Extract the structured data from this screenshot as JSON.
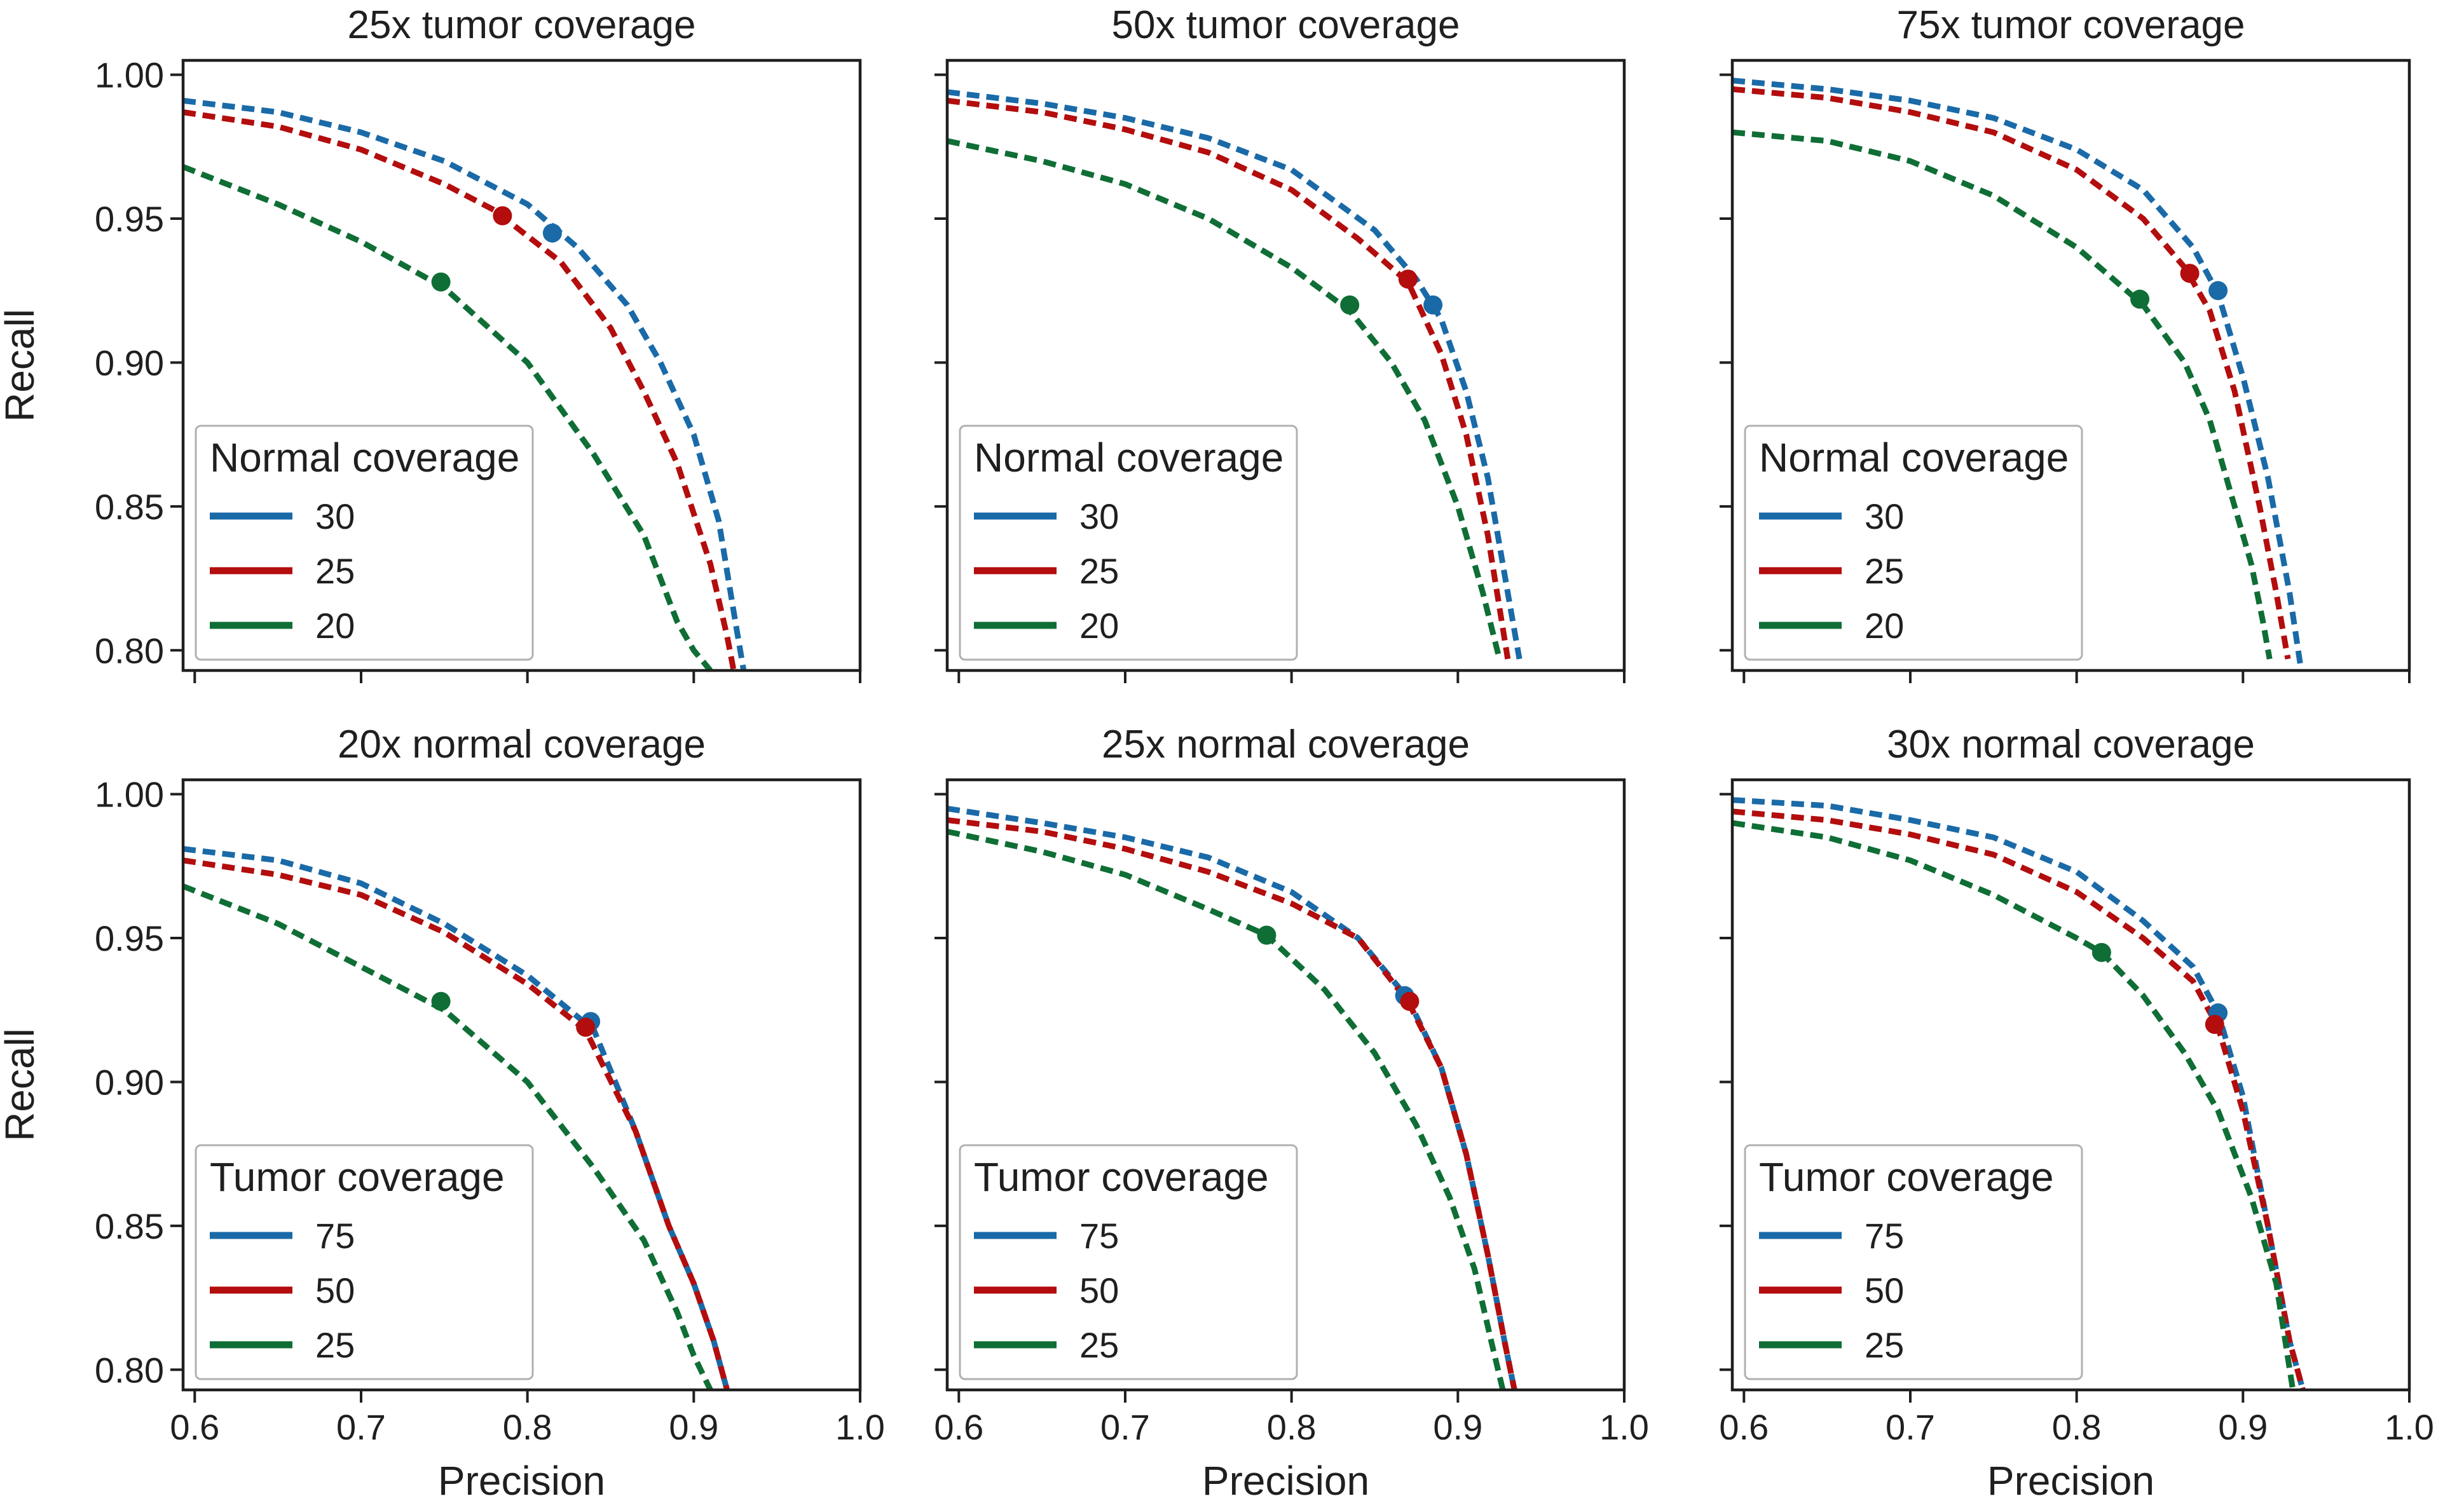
{
  "colors": {
    "blue": "#1a6aa8",
    "red": "#b30d0d",
    "green": "#0f6e35"
  },
  "chart_data": [
    {
      "type": "line",
      "title": "25x tumor coverage",
      "xlabel": "",
      "ylabel": "Recall",
      "xlim": [
        0.593,
        1.0
      ],
      "ylim": [
        0.793,
        1.005
      ],
      "xticks": [
        "0.6",
        "0.7",
        "0.8",
        "0.9",
        "1.0"
      ],
      "yticks": [
        "0.80",
        "0.85",
        "0.90",
        "0.95",
        "1.00"
      ],
      "show_xtick_labels": false,
      "show_ytick_labels": true,
      "legend": {
        "title": "Normal coverage",
        "placement": "lower-left",
        "entries": [
          "30",
          "25",
          "20"
        ]
      },
      "series": [
        {
          "name": "30",
          "color": "blue",
          "x": [
            0.593,
            0.65,
            0.7,
            0.75,
            0.8,
            0.83,
            0.86,
            0.88,
            0.9,
            0.915,
            0.925,
            0.93
          ],
          "y": [
            0.991,
            0.987,
            0.98,
            0.97,
            0.955,
            0.94,
            0.92,
            0.9,
            0.875,
            0.845,
            0.81,
            0.793
          ],
          "marker": [
            0.815,
            0.945
          ]
        },
        {
          "name": "25",
          "color": "red",
          "x": [
            0.593,
            0.65,
            0.7,
            0.75,
            0.78,
            0.82,
            0.85,
            0.87,
            0.89,
            0.91,
            0.92,
            0.924
          ],
          "y": [
            0.987,
            0.982,
            0.974,
            0.962,
            0.953,
            0.935,
            0.912,
            0.89,
            0.865,
            0.83,
            0.805,
            0.793
          ],
          "marker": [
            0.785,
            0.951
          ]
        },
        {
          "name": "20",
          "color": "green",
          "x": [
            0.593,
            0.65,
            0.7,
            0.75,
            0.8,
            0.84,
            0.87,
            0.89,
            0.9,
            0.91
          ],
          "y": [
            0.968,
            0.955,
            0.942,
            0.926,
            0.9,
            0.868,
            0.84,
            0.81,
            0.8,
            0.793
          ],
          "marker": [
            0.748,
            0.928
          ]
        }
      ]
    },
    {
      "type": "line",
      "title": "50x tumor coverage",
      "xlabel": "",
      "ylabel": "",
      "xlim": [
        0.593,
        1.0
      ],
      "ylim": [
        0.793,
        1.005
      ],
      "xticks": [
        "0.6",
        "0.7",
        "0.8",
        "0.9",
        "1.0"
      ],
      "yticks": [
        "0.80",
        "0.85",
        "0.90",
        "0.95",
        "1.00"
      ],
      "show_xtick_labels": false,
      "show_ytick_labels": false,
      "legend": {
        "title": "Normal coverage",
        "placement": "lower-left",
        "entries": [
          "30",
          "25",
          "20"
        ]
      },
      "series": [
        {
          "name": "30",
          "color": "blue",
          "x": [
            0.593,
            0.65,
            0.7,
            0.75,
            0.8,
            0.85,
            0.875,
            0.89,
            0.905,
            0.918,
            0.93,
            0.937
          ],
          "y": [
            0.994,
            0.99,
            0.985,
            0.978,
            0.967,
            0.946,
            0.929,
            0.915,
            0.89,
            0.86,
            0.82,
            0.797
          ],
          "marker": [
            0.885,
            0.92
          ]
        },
        {
          "name": "25",
          "color": "red",
          "x": [
            0.593,
            0.65,
            0.7,
            0.75,
            0.8,
            0.84,
            0.87,
            0.89,
            0.905,
            0.918,
            0.93
          ],
          "y": [
            0.991,
            0.987,
            0.981,
            0.973,
            0.96,
            0.943,
            0.928,
            0.903,
            0.875,
            0.84,
            0.797
          ],
          "marker": [
            0.87,
            0.929
          ]
        },
        {
          "name": "20",
          "color": "green",
          "x": [
            0.593,
            0.65,
            0.7,
            0.75,
            0.8,
            0.835,
            0.86,
            0.88,
            0.9,
            0.915,
            0.925
          ],
          "y": [
            0.977,
            0.97,
            0.962,
            0.95,
            0.933,
            0.918,
            0.9,
            0.88,
            0.85,
            0.82,
            0.797
          ],
          "marker": [
            0.835,
            0.92
          ]
        }
      ]
    },
    {
      "type": "line",
      "title": "75x tumor coverage",
      "xlabel": "",
      "ylabel": "",
      "xlim": [
        0.593,
        1.0
      ],
      "ylim": [
        0.793,
        1.005
      ],
      "xticks": [
        "0.6",
        "0.7",
        "0.8",
        "0.9",
        "1.0"
      ],
      "yticks": [
        "0.80",
        "0.85",
        "0.90",
        "0.95",
        "1.00"
      ],
      "show_xtick_labels": false,
      "show_ytick_labels": false,
      "legend": {
        "title": "Normal coverage",
        "placement": "lower-left",
        "entries": [
          "30",
          "25",
          "20"
        ]
      },
      "series": [
        {
          "name": "30",
          "color": "blue",
          "x": [
            0.593,
            0.65,
            0.7,
            0.75,
            0.8,
            0.84,
            0.87,
            0.885,
            0.9,
            0.915,
            0.928,
            0.935
          ],
          "y": [
            0.998,
            0.995,
            0.991,
            0.985,
            0.974,
            0.96,
            0.94,
            0.924,
            0.895,
            0.86,
            0.82,
            0.793
          ],
          "marker": [
            0.885,
            0.925
          ]
        },
        {
          "name": "25",
          "color": "red",
          "x": [
            0.593,
            0.65,
            0.7,
            0.75,
            0.8,
            0.84,
            0.865,
            0.88,
            0.895,
            0.91,
            0.92,
            0.927
          ],
          "y": [
            0.995,
            0.992,
            0.987,
            0.98,
            0.967,
            0.95,
            0.933,
            0.918,
            0.89,
            0.85,
            0.82,
            0.797
          ],
          "marker": [
            0.868,
            0.931
          ]
        },
        {
          "name": "20",
          "color": "green",
          "x": [
            0.593,
            0.65,
            0.7,
            0.75,
            0.8,
            0.84,
            0.865,
            0.88,
            0.895,
            0.905,
            0.912,
            0.916
          ],
          "y": [
            0.98,
            0.977,
            0.97,
            0.958,
            0.94,
            0.92,
            0.9,
            0.88,
            0.85,
            0.83,
            0.81,
            0.797
          ],
          "marker": [
            0.838,
            0.922
          ]
        }
      ]
    },
    {
      "type": "line",
      "title": "20x normal coverage",
      "xlabel": "Precision",
      "ylabel": "Recall",
      "xlim": [
        0.593,
        1.0
      ],
      "ylim": [
        0.793,
        1.005
      ],
      "xticks": [
        "0.6",
        "0.7",
        "0.8",
        "0.9",
        "1.0"
      ],
      "yticks": [
        "0.80",
        "0.85",
        "0.90",
        "0.95",
        "1.00"
      ],
      "show_xtick_labels": true,
      "show_ytick_labels": true,
      "legend": {
        "title": "Tumor coverage",
        "placement": "lower-left",
        "entries": [
          "75",
          "50",
          "25"
        ]
      },
      "series": [
        {
          "name": "75",
          "color": "blue",
          "x": [
            0.593,
            0.65,
            0.7,
            0.75,
            0.8,
            0.84,
            0.865,
            0.885,
            0.9,
            0.912,
            0.92
          ],
          "y": [
            0.981,
            0.977,
            0.969,
            0.955,
            0.937,
            0.918,
            0.883,
            0.85,
            0.83,
            0.81,
            0.793
          ],
          "marker": [
            0.838,
            0.921
          ]
        },
        {
          "name": "50",
          "color": "red",
          "x": [
            0.593,
            0.65,
            0.7,
            0.75,
            0.8,
            0.835,
            0.865,
            0.885,
            0.9,
            0.912,
            0.92
          ],
          "y": [
            0.977,
            0.972,
            0.965,
            0.952,
            0.934,
            0.918,
            0.883,
            0.85,
            0.83,
            0.81,
            0.793
          ],
          "marker": [
            0.835,
            0.919
          ]
        },
        {
          "name": "25",
          "color": "green",
          "x": [
            0.593,
            0.65,
            0.7,
            0.75,
            0.8,
            0.84,
            0.87,
            0.89,
            0.9,
            0.91
          ],
          "y": [
            0.968,
            0.955,
            0.94,
            0.925,
            0.9,
            0.87,
            0.845,
            0.82,
            0.805,
            0.793
          ],
          "marker": [
            0.748,
            0.928
          ]
        }
      ]
    },
    {
      "type": "line",
      "title": "25x normal coverage",
      "xlabel": "Precision",
      "ylabel": "",
      "xlim": [
        0.593,
        1.0
      ],
      "ylim": [
        0.793,
        1.005
      ],
      "xticks": [
        "0.6",
        "0.7",
        "0.8",
        "0.9",
        "1.0"
      ],
      "yticks": [
        "0.80",
        "0.85",
        "0.90",
        "0.95",
        "1.00"
      ],
      "show_xtick_labels": true,
      "show_ytick_labels": false,
      "legend": {
        "title": "Tumor coverage",
        "placement": "lower-left",
        "entries": [
          "75",
          "50",
          "25"
        ]
      },
      "series": [
        {
          "name": "75",
          "color": "blue",
          "x": [
            0.593,
            0.65,
            0.7,
            0.75,
            0.8,
            0.84,
            0.87,
            0.89,
            0.905,
            0.918,
            0.928,
            0.934
          ],
          "y": [
            0.995,
            0.99,
            0.985,
            0.978,
            0.966,
            0.95,
            0.929,
            0.905,
            0.875,
            0.84,
            0.81,
            0.793
          ],
          "marker": [
            0.868,
            0.93
          ]
        },
        {
          "name": "50",
          "color": "red",
          "x": [
            0.593,
            0.65,
            0.7,
            0.75,
            0.8,
            0.84,
            0.87,
            0.89,
            0.905,
            0.918,
            0.928,
            0.934
          ],
          "y": [
            0.991,
            0.987,
            0.981,
            0.973,
            0.962,
            0.95,
            0.928,
            0.905,
            0.875,
            0.84,
            0.81,
            0.793
          ],
          "marker": [
            0.871,
            0.928
          ]
        },
        {
          "name": "25",
          "color": "green",
          "x": [
            0.593,
            0.65,
            0.7,
            0.75,
            0.785,
            0.82,
            0.85,
            0.875,
            0.895,
            0.91,
            0.92,
            0.927
          ],
          "y": [
            0.987,
            0.98,
            0.972,
            0.96,
            0.951,
            0.932,
            0.91,
            0.885,
            0.86,
            0.835,
            0.81,
            0.793
          ],
          "marker": [
            0.785,
            0.951
          ]
        }
      ]
    },
    {
      "type": "line",
      "title": "30x normal coverage",
      "xlabel": "Precision",
      "ylabel": "",
      "xlim": [
        0.593,
        1.0
      ],
      "ylim": [
        0.793,
        1.005
      ],
      "xticks": [
        "0.6",
        "0.7",
        "0.8",
        "0.9",
        "1.0"
      ],
      "yticks": [
        "0.80",
        "0.85",
        "0.90",
        "0.95",
        "1.00"
      ],
      "show_xtick_labels": true,
      "show_ytick_labels": false,
      "legend": {
        "title": "Tumor coverage",
        "placement": "lower-left",
        "entries": [
          "75",
          "50",
          "25"
        ]
      },
      "series": [
        {
          "name": "75",
          "color": "blue",
          "x": [
            0.593,
            0.65,
            0.7,
            0.75,
            0.8,
            0.84,
            0.87,
            0.885,
            0.9,
            0.915,
            0.928,
            0.936
          ],
          "y": [
            0.998,
            0.996,
            0.991,
            0.985,
            0.973,
            0.956,
            0.94,
            0.924,
            0.895,
            0.85,
            0.81,
            0.793
          ],
          "marker": [
            0.885,
            0.924
          ]
        },
        {
          "name": "50",
          "color": "red",
          "x": [
            0.593,
            0.65,
            0.7,
            0.75,
            0.8,
            0.84,
            0.87,
            0.885,
            0.9,
            0.915,
            0.928,
            0.936
          ],
          "y": [
            0.994,
            0.991,
            0.986,
            0.979,
            0.966,
            0.95,
            0.935,
            0.919,
            0.89,
            0.85,
            0.81,
            0.793
          ],
          "marker": [
            0.883,
            0.92
          ]
        },
        {
          "name": "25",
          "color": "green",
          "x": [
            0.593,
            0.65,
            0.7,
            0.75,
            0.8,
            0.815,
            0.84,
            0.865,
            0.885,
            0.905,
            0.92,
            0.93
          ],
          "y": [
            0.99,
            0.985,
            0.977,
            0.965,
            0.95,
            0.945,
            0.93,
            0.91,
            0.89,
            0.86,
            0.83,
            0.793
          ],
          "marker": [
            0.815,
            0.945
          ]
        }
      ]
    }
  ]
}
